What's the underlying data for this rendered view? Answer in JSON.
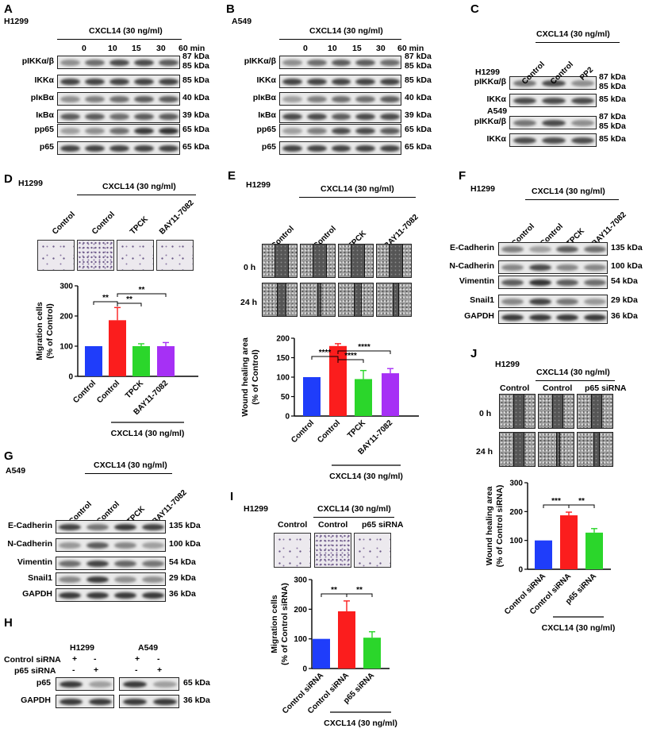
{
  "panels": {
    "A": {
      "letter": "A",
      "cell": "H1299",
      "treatment": "CXCL14 (30 ng/ml)",
      "times": [
        "0",
        "10",
        "15",
        "30",
        "60 min"
      ],
      "rows": [
        {
          "label": "pIKKα/β",
          "kda": "87 kDa",
          "kda2": "85 kDa"
        },
        {
          "label": "IKKα",
          "kda": "85 kDa"
        },
        {
          "label": "pIκBα",
          "kda": "40 kDa"
        },
        {
          "label": "IκBα",
          "kda": "39 kDa"
        },
        {
          "label": "pp65",
          "kda": "65 kDa"
        },
        {
          "label": "p65",
          "kda": "65 kDa"
        }
      ]
    },
    "B": {
      "letter": "B",
      "cell": "A549",
      "treatment": "CXCL14 (30 ng/ml)",
      "times": [
        "0",
        "10",
        "15",
        "30",
        "60 min"
      ],
      "rows": [
        {
          "label": "pIKKα/β",
          "kda": "87 kDa",
          "kda2": "85 kDa"
        },
        {
          "label": "IKKα",
          "kda": "85 kDa"
        },
        {
          "label": "pIκBα",
          "kda": "40 kDa"
        },
        {
          "label": "IκBα",
          "kda": "39 kDa"
        },
        {
          "label": "pp65",
          "kda": "65 kDa"
        },
        {
          "label": "p65",
          "kda": "65 kDa"
        }
      ]
    },
    "C": {
      "letter": "C",
      "treatment": "CXCL14 (30 ng/ml)",
      "lanes": [
        "Control",
        "Control",
        "PP2"
      ],
      "cell1": "H1299",
      "cell2": "A549",
      "rows": [
        {
          "label": "pIKKα/β",
          "kda": "87 kDa",
          "kda2": "85 kDa"
        },
        {
          "label": "IKKα",
          "kda": "85 kDa"
        },
        {
          "label": "pIKKα/β",
          "kda": "87 kDa",
          "kda2": "85 kDa"
        },
        {
          "label": "IKKα",
          "kda": "85 kDa"
        }
      ]
    },
    "D": {
      "letter": "D",
      "cell": "H1299",
      "treatment": "CXCL14 (30 ng/ml)",
      "lanes": [
        "Control",
        "Control",
        "TPCK",
        "BAY11-7082"
      ],
      "ylabel1": "Migration cells",
      "ylabel2": "(% of Control)",
      "ticks": [
        "0",
        "100",
        "200",
        "300"
      ],
      "sig": [
        "**",
        "**",
        "**"
      ]
    },
    "E": {
      "letter": "E",
      "cell": "H1299",
      "treatment": "CXCL14 (30 ng/ml)",
      "lanes": [
        "Control",
        "Control",
        "TPCK",
        "BAY11-7082"
      ],
      "times": [
        "0 h",
        "24 h"
      ],
      "ylabel1": "Wound healing area",
      "ylabel2": "(% of Control)",
      "ticks": [
        "0",
        "50",
        "100",
        "150",
        "200"
      ],
      "sig": [
        "****",
        "****",
        "****"
      ]
    },
    "F": {
      "letter": "F",
      "cell": "H1299",
      "treatment": "CXCL14 (30 ng/ml)",
      "lanes": [
        "Control",
        "Control",
        "TPCK",
        "BAY11-7082"
      ],
      "rows": [
        {
          "label": "E-Cadherin",
          "kda": "135 kDa"
        },
        {
          "label": "N-Cadherin",
          "kda": "100 kDa"
        },
        {
          "label": "Vimentin",
          "kda": "54 kDa"
        },
        {
          "label": "Snail1",
          "kda": "29 kDa"
        },
        {
          "label": "GAPDH",
          "kda": "36 kDa"
        }
      ]
    },
    "G": {
      "letter": "G",
      "cell": "A549",
      "treatment": "CXCL14 (30 ng/ml)",
      "lanes": [
        "Control",
        "Control",
        "TPCK",
        "BAY11-7082"
      ],
      "rows": [
        {
          "label": "E-Cadherin",
          "kda": "135 kDa"
        },
        {
          "label": "N-Cadherin",
          "kda": "100 kDa"
        },
        {
          "label": "Vimentin",
          "kda": "54 kDa"
        },
        {
          "label": "Snail1",
          "kda": "29 kDa"
        },
        {
          "label": "GAPDH",
          "kda": "36 kDa"
        }
      ]
    },
    "H": {
      "letter": "H",
      "cell1": "H1299",
      "cell2": "A549",
      "row1": "Control siRNA",
      "row2": "p65 siRNA",
      "signs1": [
        "+",
        "-",
        "+",
        "-"
      ],
      "signs2": [
        "-",
        "+",
        "-",
        "+"
      ],
      "rows": [
        {
          "label": "p65",
          "kda": "65 kDa"
        },
        {
          "label": "GAPDH",
          "kda": "36 kDa"
        }
      ]
    },
    "I": {
      "letter": "I",
      "cell": "H1299",
      "treatment": "CXCL14 (30 ng/ml)",
      "lanes": [
        "Control",
        "Control",
        "p65 siRNA"
      ],
      "ylabel1": "Migration cells",
      "ylabel2": "(% of Control siRNA)",
      "ticks": [
        "0",
        "100",
        "200",
        "300"
      ],
      "sig": [
        "**",
        "**"
      ]
    },
    "J": {
      "letter": "J",
      "cell": "H1299",
      "treatment": "CXCL14 (30 ng/ml)",
      "lanes": [
        "Control",
        "Control",
        "p65 siRNA"
      ],
      "times": [
        "0 h",
        "24 h"
      ],
      "ylabel1": "Wound healing area",
      "ylabel2": "(% of Control siRNA)",
      "ticks": [
        "0",
        "100",
        "200",
        "300"
      ],
      "sig": [
        "***",
        "**"
      ]
    }
  },
  "chart_data": [
    {
      "panel": "D",
      "type": "bar",
      "categories": [
        "Control",
        "Control",
        "TPCK",
        "BAY11-7082"
      ],
      "values": [
        100,
        186,
        100,
        100
      ],
      "errors": [
        0,
        42,
        8,
        12
      ],
      "colors": [
        "#1f3dfa",
        "#fb1d1d",
        "#2bd62b",
        "#a630f5"
      ],
      "xlabel": "CXCL14 (30 ng/ml)",
      "ylabel": "Migration cells (% of Control)",
      "ylim": [
        0,
        300
      ]
    },
    {
      "panel": "E",
      "type": "bar",
      "categories": [
        "Control",
        "Control",
        "TPCK",
        "BAY11-7082"
      ],
      "values": [
        100,
        180,
        95,
        110
      ],
      "errors": [
        0,
        6,
        22,
        12
      ],
      "colors": [
        "#1f3dfa",
        "#fb1d1d",
        "#2bd62b",
        "#a630f5"
      ],
      "xlabel": "CXCL14 (30 ng/ml)",
      "ylabel": "Wound healing area (% of Control)",
      "ylim": [
        0,
        200
      ]
    },
    {
      "panel": "I",
      "type": "bar",
      "categories": [
        "Control siRNA",
        "Control siRNA",
        "p65 siRNA"
      ],
      "values": [
        100,
        193,
        104
      ],
      "errors": [
        0,
        35,
        20
      ],
      "colors": [
        "#1f3dfa",
        "#fb1d1d",
        "#2bd62b"
      ],
      "xlabel": "CXCL14 (30 ng/ml)",
      "ylabel": "Migration cells (% of Control siRNA)",
      "ylim": [
        0,
        300
      ]
    },
    {
      "panel": "J",
      "type": "bar",
      "categories": [
        "Control siRNA",
        "Control siRNA",
        "p65 siRNA"
      ],
      "values": [
        100,
        187,
        127
      ],
      "errors": [
        0,
        11,
        14
      ],
      "colors": [
        "#1f3dfa",
        "#fb1d1d",
        "#2bd62b"
      ],
      "xlabel": "CXCL14 (30 ng/ml)",
      "ylabel": "Wound healing area (% of Control siRNA)",
      "ylim": [
        0,
        300
      ]
    }
  ]
}
